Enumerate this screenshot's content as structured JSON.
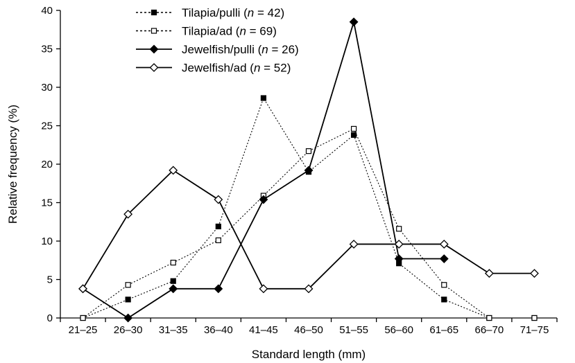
{
  "chart_data": {
    "type": "line",
    "categories": [
      "21–25",
      "26–30",
      "31–35",
      "36–40",
      "41–45",
      "46–50",
      "51–55",
      "56–60",
      "61–65",
      "66–70",
      "71–75"
    ],
    "xlabel": "Standard length (mm)",
    "ylabel": "Relative frequency (%)",
    "ylim": [
      0,
      40
    ],
    "yticks": [
      0,
      5,
      10,
      15,
      20,
      25,
      30,
      35,
      40
    ],
    "yticklabels": [
      "0",
      "5",
      "10",
      "15",
      "20",
      "25",
      "30",
      "35",
      "40"
    ],
    "grid": false,
    "legend_position": "top-center",
    "series": [
      {
        "name": "Tilapia/pulli (n = 42)",
        "legend_parts": [
          "Tilapia/pulli (",
          "n",
          " = 42)"
        ],
        "line": "dotted",
        "marker": "square-filled",
        "color": "#000000",
        "values": [
          0,
          2.4,
          4.8,
          11.9,
          28.6,
          19.0,
          23.8,
          7.1,
          2.4,
          0,
          0
        ]
      },
      {
        "name": "Tilapia/ad (n = 69)",
        "legend_parts": [
          "Tilapia/ad (",
          "n",
          " = 69)"
        ],
        "line": "dotted",
        "marker": "square-open",
        "color": "#000000",
        "values": [
          0,
          4.3,
          7.2,
          10.1,
          15.9,
          21.7,
          24.6,
          11.6,
          4.3,
          0,
          0
        ]
      },
      {
        "name": "Jewelfish/pulli (n = 26)",
        "legend_parts": [
          "Jewelfish/pulli (",
          "n",
          " = 26)"
        ],
        "line": "solid",
        "marker": "diamond-filled",
        "color": "#000000",
        "values": [
          3.8,
          0,
          3.8,
          3.8,
          15.4,
          19.2,
          38.5,
          7.7,
          7.7,
          null,
          null
        ]
      },
      {
        "name": "Jewelfish/ad (n = 52)",
        "legend_parts": [
          "Jewelfish/ad (",
          "n",
          " = 52)"
        ],
        "line": "solid",
        "marker": "diamond-open",
        "color": "#000000",
        "values": [
          3.8,
          13.5,
          19.2,
          15.4,
          3.8,
          3.8,
          9.6,
          9.6,
          9.6,
          5.8,
          5.8
        ]
      }
    ]
  }
}
